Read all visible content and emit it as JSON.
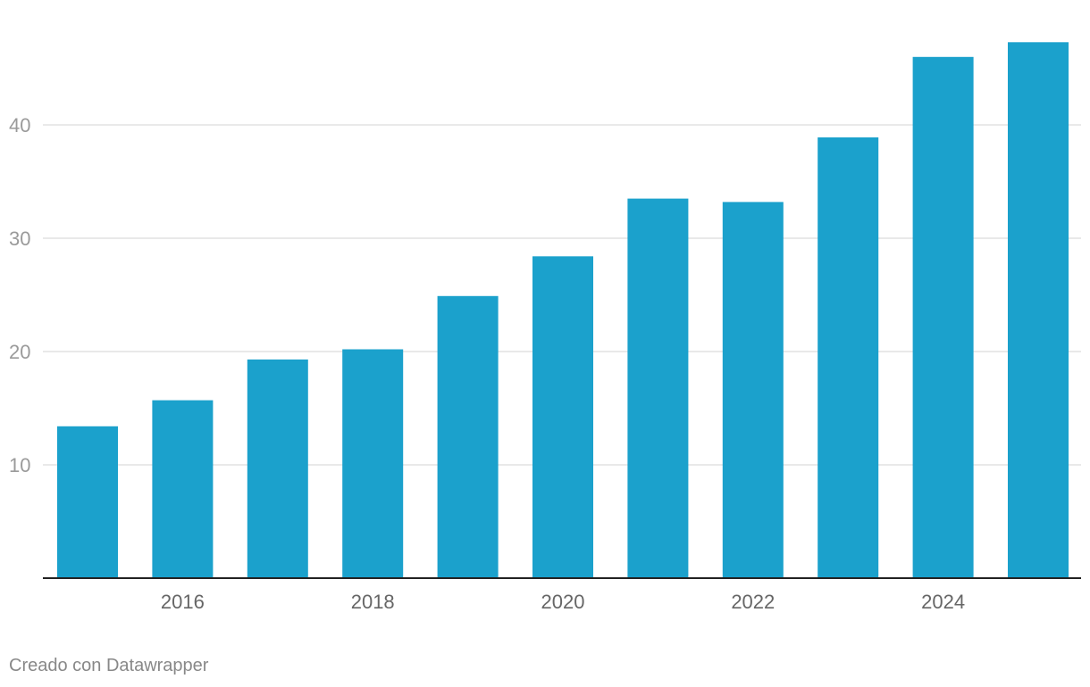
{
  "chart_data": {
    "type": "bar",
    "categories": [
      "2015",
      "2016",
      "2017",
      "2018",
      "2019",
      "2020",
      "2021",
      "2022",
      "2023",
      "2024",
      "2025"
    ],
    "values": [
      13.4,
      15.7,
      19.3,
      20.2,
      24.9,
      28.4,
      33.5,
      33.2,
      38.9,
      46.0,
      47.3
    ],
    "x_tick_labels": [
      "2016",
      "2018",
      "2020",
      "2022",
      "2024"
    ],
    "y_ticks": [
      10,
      20,
      30,
      40
    ],
    "ylim": [
      0,
      47.3
    ],
    "grid": true,
    "bar_color": "#1ba1cc",
    "title": "",
    "xlabel": "",
    "ylabel": ""
  },
  "footer": {
    "credit": "Creado con Datawrapper"
  }
}
